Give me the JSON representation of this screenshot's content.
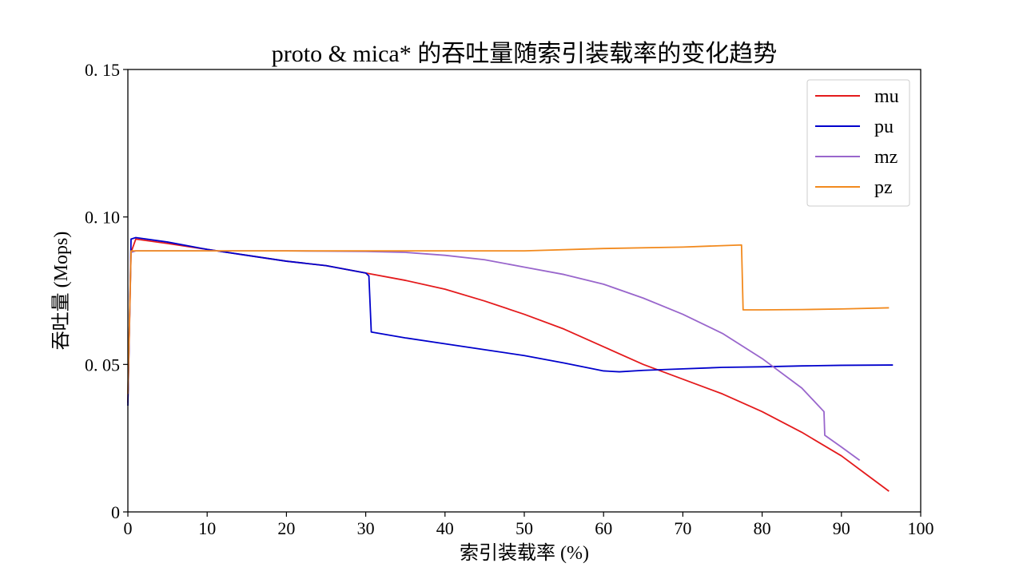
{
  "chart_data": {
    "type": "line",
    "title": "proto & mica* 的吞吐量随索引装载率的变化趋势",
    "xlabel": "索引装载率 (%)",
    "ylabel": "吞吐量 (Mops)",
    "xlim": [
      0,
      100
    ],
    "ylim": [
      0,
      0.15
    ],
    "x_ticks": [
      0,
      10,
      20,
      30,
      40,
      50,
      60,
      70,
      80,
      90,
      100
    ],
    "x_tick_labels": [
      "0",
      "10",
      "20",
      "30",
      "40",
      "50",
      "60",
      "70",
      "80",
      "90",
      "100"
    ],
    "y_ticks": [
      0,
      0.05,
      0.1,
      0.15
    ],
    "y_tick_labels": [
      "0",
      "0. 05",
      "0. 10",
      "0. 15"
    ],
    "grid": false,
    "legend_position": "top-right",
    "series": [
      {
        "name": "mu",
        "color": "#e41a1c",
        "points": [
          [
            0,
            0.037
          ],
          [
            0.4,
            0.088
          ],
          [
            1,
            0.0925
          ],
          [
            5,
            0.091
          ],
          [
            10,
            0.089
          ],
          [
            15,
            0.087
          ],
          [
            20,
            0.085
          ],
          [
            25,
            0.0835
          ],
          [
            30,
            0.081
          ],
          [
            35,
            0.0785
          ],
          [
            40,
            0.0755
          ],
          [
            45,
            0.0715
          ],
          [
            50,
            0.067
          ],
          [
            55,
            0.062
          ],
          [
            60,
            0.056
          ],
          [
            65,
            0.05
          ],
          [
            70,
            0.045
          ],
          [
            75,
            0.04
          ],
          [
            80,
            0.034
          ],
          [
            85,
            0.027
          ],
          [
            90,
            0.019
          ],
          [
            93,
            0.013
          ],
          [
            96,
            0.007
          ]
        ]
      },
      {
        "name": "pu",
        "color": "#0000cc",
        "points": [
          [
            0,
            0.036
          ],
          [
            0.4,
            0.0925
          ],
          [
            1,
            0.093
          ],
          [
            5,
            0.0915
          ],
          [
            10,
            0.089
          ],
          [
            15,
            0.087
          ],
          [
            20,
            0.085
          ],
          [
            25,
            0.0835
          ],
          [
            30,
            0.081
          ],
          [
            30.4,
            0.08
          ],
          [
            30.7,
            0.061
          ],
          [
            35,
            0.059
          ],
          [
            40,
            0.057
          ],
          [
            45,
            0.055
          ],
          [
            50,
            0.053
          ],
          [
            55,
            0.0505
          ],
          [
            60,
            0.0478
          ],
          [
            62,
            0.0475
          ],
          [
            65,
            0.048
          ],
          [
            70,
            0.0485
          ],
          [
            75,
            0.049
          ],
          [
            80,
            0.0492
          ],
          [
            85,
            0.0495
          ],
          [
            90,
            0.0497
          ],
          [
            96.5,
            0.0498
          ]
        ]
      },
      {
        "name": "mz",
        "color": "#9966cc",
        "points": [
          [
            0,
            0.04
          ],
          [
            0.4,
            0.088
          ],
          [
            1,
            0.0885
          ],
          [
            5,
            0.0885
          ],
          [
            10,
            0.0885
          ],
          [
            15,
            0.0885
          ],
          [
            20,
            0.0885
          ],
          [
            25,
            0.0884
          ],
          [
            30,
            0.0883
          ],
          [
            35,
            0.088
          ],
          [
            40,
            0.087
          ],
          [
            45,
            0.0855
          ],
          [
            50,
            0.083
          ],
          [
            55,
            0.0805
          ],
          [
            60,
            0.0772
          ],
          [
            65,
            0.0725
          ],
          [
            70,
            0.067
          ],
          [
            75,
            0.0605
          ],
          [
            80,
            0.052
          ],
          [
            85,
            0.042
          ],
          [
            87.8,
            0.034
          ],
          [
            87.9,
            0.026
          ],
          [
            90,
            0.022
          ],
          [
            92.3,
            0.0175
          ]
        ]
      },
      {
        "name": "pz",
        "color": "#f28a1e",
        "points": [
          [
            0,
            0.04
          ],
          [
            0.4,
            0.0885
          ],
          [
            1,
            0.0885
          ],
          [
            10,
            0.0885
          ],
          [
            20,
            0.0885
          ],
          [
            30,
            0.0885
          ],
          [
            40,
            0.0885
          ],
          [
            50,
            0.0885
          ],
          [
            60,
            0.0893
          ],
          [
            70,
            0.0898
          ],
          [
            77.4,
            0.0905
          ],
          [
            77.6,
            0.0685
          ],
          [
            80,
            0.0685
          ],
          [
            85,
            0.0686
          ],
          [
            90,
            0.0688
          ],
          [
            96,
            0.0692
          ]
        ]
      }
    ]
  }
}
